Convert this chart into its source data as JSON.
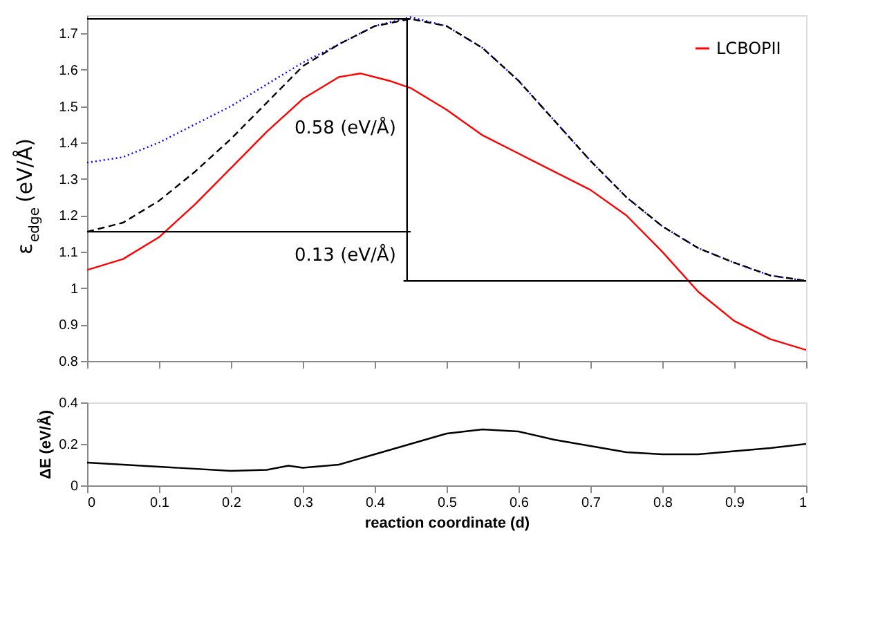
{
  "chart_data": [
    {
      "type": "line",
      "ylabel": "ε$_{edge}$ (eV/Å)",
      "ylim": [
        0.8,
        1.75
      ],
      "yticks": [
        0.8,
        0.9,
        1,
        1.1,
        1.2,
        1.3,
        1.4,
        1.5,
        1.6,
        1.7
      ],
      "xlim": [
        0,
        1
      ],
      "xticks": [
        0,
        0.1,
        0.2,
        0.3,
        0.4,
        0.5,
        0.6,
        0.7,
        0.8,
        0.9,
        1
      ],
      "tick_labels": "y",
      "grid": false,
      "legend": "top right",
      "series": [
        {
          "name": "LCBOPII",
          "color": "#ff0000",
          "line_style": "solid",
          "x": [
            0,
            0.05,
            0.1,
            0.15,
            0.2,
            0.25,
            0.3,
            0.35,
            0.38,
            0.42,
            0.45,
            0.5,
            0.55,
            0.6,
            0.65,
            0.7,
            0.75,
            0.8,
            0.85,
            0.9,
            0.95,
            1
          ],
          "values": [
            1.05,
            1.08,
            1.14,
            1.23,
            1.33,
            1.43,
            1.52,
            1.58,
            1.59,
            1.57,
            1.55,
            1.49,
            1.42,
            1.37,
            1.32,
            1.27,
            1.2,
            1.1,
            0.99,
            0.91,
            0.86,
            0.83
          ]
        },
        {
          "color": "#0000ff",
          "line_style": "dotted",
          "x": [
            0,
            0.05,
            0.1,
            0.15,
            0.2,
            0.25,
            0.3,
            0.35,
            0.4,
            0.45,
            0.5,
            0.55,
            0.6,
            0.65,
            0.7,
            0.75,
            0.8,
            0.85,
            0.9,
            0.95,
            1
          ],
          "values": [
            1.345,
            1.36,
            1.4,
            1.45,
            1.5,
            1.56,
            1.62,
            1.67,
            1.72,
            1.745,
            1.72,
            1.66,
            1.57,
            1.46,
            1.35,
            1.25,
            1.17,
            1.11,
            1.07,
            1.035,
            1.02
          ]
        },
        {
          "color": "#000000",
          "line_style": "dashed",
          "x": [
            0,
            0.05,
            0.1,
            0.15,
            0.2,
            0.25,
            0.3,
            0.35,
            0.4,
            0.45,
            0.5,
            0.55,
            0.6,
            0.65,
            0.7,
            0.75,
            0.8,
            0.85,
            0.9,
            0.95,
            1
          ],
          "values": [
            1.155,
            1.18,
            1.24,
            1.32,
            1.41,
            1.51,
            1.61,
            1.67,
            1.72,
            1.74,
            1.72,
            1.66,
            1.57,
            1.46,
            1.35,
            1.25,
            1.17,
            1.11,
            1.07,
            1.035,
            1.02
          ]
        },
        {
          "color": "#000000",
          "line_style": "solid",
          "x": [
            0,
            0.45
          ],
          "values": [
            1.74,
            1.74
          ]
        },
        {
          "color": "#000000",
          "line_style": "solid",
          "x": [
            0,
            0.45
          ],
          "values": [
            1.155,
            1.155
          ]
        },
        {
          "color": "#000000",
          "line_style": "solid",
          "x": [
            0.44,
            1
          ],
          "values": [
            1.02,
            1.02
          ]
        },
        {
          "color": "#000000",
          "line_style": "solid",
          "x": [
            0.445,
            0.445,
            0.445
          ],
          "values": [
            1.02,
            1.155,
            1.74
          ]
        }
      ],
      "annotations": [
        {
          "text": "0.58 (eV/Å)",
          "x": 0.445,
          "y": 1.44
        },
        {
          "text": "0.13 (eV/Å)",
          "x": 0.445,
          "y": 1.09
        }
      ]
    },
    {
      "type": "line",
      "ylabel": "ΔE (eV/Å)",
      "xlabel": "reaction coordinate (d)",
      "ylim": [
        0,
        0.4
      ],
      "yticks": [
        0,
        0.2,
        0.4
      ],
      "xlim": [
        0,
        1
      ],
      "xticks": [
        0,
        0.1,
        0.2,
        0.3,
        0.4,
        0.5,
        0.6,
        0.7,
        0.8,
        0.9,
        1
      ],
      "grid": false,
      "series": [
        {
          "color": "#000000",
          "line_style": "solid",
          "x": [
            0,
            0.1,
            0.2,
            0.25,
            0.28,
            0.3,
            0.35,
            0.4,
            0.45,
            0.5,
            0.55,
            0.6,
            0.65,
            0.7,
            0.75,
            0.8,
            0.85,
            0.9,
            0.95,
            1
          ],
          "values": [
            0.11,
            0.09,
            0.07,
            0.075,
            0.095,
            0.085,
            0.1,
            0.15,
            0.2,
            0.25,
            0.27,
            0.26,
            0.22,
            0.19,
            0.16,
            0.15,
            0.15,
            0.165,
            0.18,
            0.2
          ]
        }
      ]
    }
  ]
}
